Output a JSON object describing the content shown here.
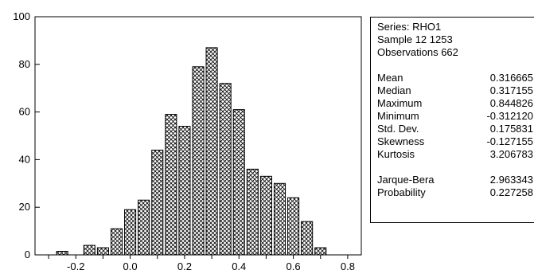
{
  "chart_data": {
    "type": "bar",
    "bin_width": 0.05,
    "bins": [
      {
        "x": -0.25,
        "value": 1.5
      },
      {
        "x": -0.15,
        "value": 4
      },
      {
        "x": -0.1,
        "value": 3
      },
      {
        "x": -0.05,
        "value": 11
      },
      {
        "x": 0.0,
        "value": 19
      },
      {
        "x": 0.05,
        "value": 23
      },
      {
        "x": 0.1,
        "value": 44
      },
      {
        "x": 0.15,
        "value": 59
      },
      {
        "x": 0.2,
        "value": 54
      },
      {
        "x": 0.25,
        "value": 79
      },
      {
        "x": 0.3,
        "value": 87
      },
      {
        "x": 0.35,
        "value": 72
      },
      {
        "x": 0.4,
        "value": 61
      },
      {
        "x": 0.45,
        "value": 36
      },
      {
        "x": 0.5,
        "value": 33
      },
      {
        "x": 0.55,
        "value": 30
      },
      {
        "x": 0.6,
        "value": 24
      },
      {
        "x": 0.65,
        "value": 14
      },
      {
        "x": 0.7,
        "value": 3
      }
    ],
    "xlim": [
      -0.35,
      0.85
    ],
    "ylim": [
      0,
      100
    ],
    "x_ticks": [
      -0.2,
      0.0,
      0.2,
      0.4,
      0.6,
      0.8
    ],
    "x_tick_labels": [
      "-0.2",
      "0.0",
      "0.2",
      "0.4",
      "0.6",
      "0.8"
    ],
    "y_ticks": [
      0,
      20,
      40,
      60,
      80,
      100
    ],
    "y_tick_labels": [
      "0",
      "20",
      "40",
      "60",
      "80",
      "100"
    ],
    "title": "",
    "xlabel": "",
    "ylabel": "",
    "grid": false,
    "bar_fill": "crosshatch"
  },
  "stats": {
    "header": [
      "Series: RHO1",
      "Sample 12 1253",
      "Observations 662"
    ],
    "moments": [
      {
        "name": "Mean",
        "value": "0.316665"
      },
      {
        "name": "Median",
        "value": "0.317155"
      },
      {
        "name": "Maximum",
        "value": "0.844826"
      },
      {
        "name": "Minimum",
        "value": "-0.312120"
      },
      {
        "name": "Std. Dev.",
        "value": "0.175831"
      },
      {
        "name": "Skewness",
        "value": "-0.127155"
      },
      {
        "name": "Kurtosis",
        "value": "3.206783"
      }
    ],
    "tests": [
      {
        "name": "Jarque-Bera",
        "value": "2.963343"
      },
      {
        "name": "Probability",
        "value": "0.227258"
      }
    ]
  }
}
